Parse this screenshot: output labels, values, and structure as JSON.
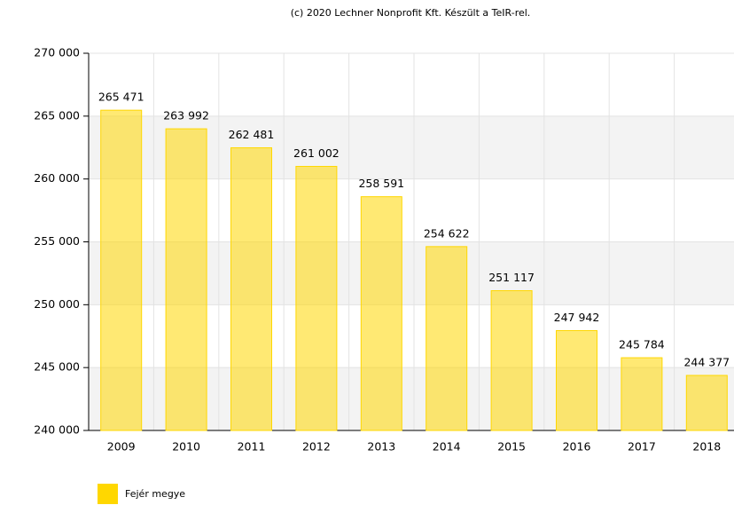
{
  "chart_data": {
    "type": "bar",
    "credit": "(c) 2020 Lechner Nonprofit Kft. Készült a TeIR-rel.",
    "categories": [
      "2009",
      "2010",
      "2011",
      "2012",
      "2013",
      "2014",
      "2015",
      "2016",
      "2017",
      "2018"
    ],
    "series": [
      {
        "name": "Fejér megye",
        "color": "#ffd700",
        "values": [
          265471,
          263992,
          262481,
          261002,
          258591,
          254622,
          251117,
          247942,
          245784,
          244377
        ],
        "value_labels": [
          "265 471",
          "263 992",
          "262 481",
          "261 002",
          "258 591",
          "254 622",
          "251 117",
          "247 942",
          "245 784",
          "244 377"
        ]
      }
    ],
    "ylim": [
      240000,
      270000
    ],
    "yticks": [
      {
        "value": 240000,
        "label": "240 000"
      },
      {
        "value": 245000,
        "label": "245 000"
      },
      {
        "value": 250000,
        "label": "250 000"
      },
      {
        "value": 255000,
        "label": "255 000"
      },
      {
        "value": 260000,
        "label": "260 000"
      },
      {
        "value": 265000,
        "label": "265 000"
      },
      {
        "value": 270000,
        "label": "270 000"
      }
    ],
    "grid": true
  }
}
